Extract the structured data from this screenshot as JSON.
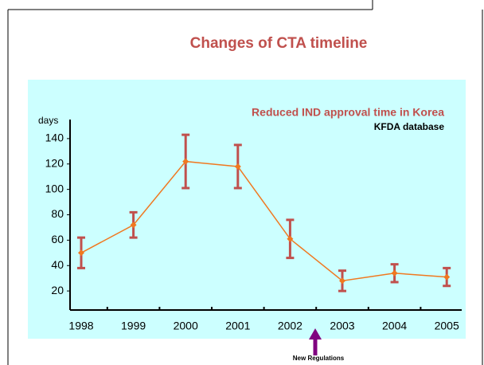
{
  "chart_data": {
    "type": "line",
    "title": "Changes of CTA timeline",
    "y_label": "days",
    "annotations": [
      "Reduced IND approval time in Korea",
      "KFDA database",
      "New Regulations"
    ],
    "categories": [
      "1998",
      "1999",
      "2000",
      "2001",
      "2002",
      "2003",
      "2004",
      "2005"
    ],
    "series": [
      {
        "color": "#f07820",
        "error_color": "#c0504d",
        "values": [
          50,
          72,
          122,
          118,
          61,
          28,
          34,
          31
        ],
        "errors": [
          12,
          10,
          21,
          17,
          15,
          8,
          7,
          7
        ]
      }
    ],
    "ylim": [
      5,
      155
    ],
    "yticks": [
      20,
      40,
      60,
      80,
      100,
      120,
      140
    ]
  }
}
